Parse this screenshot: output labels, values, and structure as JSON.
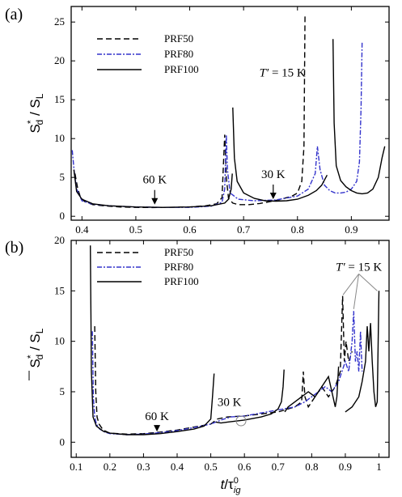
{
  "chart_data": [
    {
      "panel": "(a)",
      "type": "line",
      "xlim": [
        0.38,
        0.97
      ],
      "ylim": [
        -0.5,
        27
      ],
      "xticks": [
        0.4,
        0.5,
        0.6,
        0.7,
        0.8,
        0.9
      ],
      "yticks": [
        0,
        5,
        10,
        15,
        20,
        25
      ],
      "ylabel_main": "S",
      "ylabel_sup": "*",
      "ylabel_sub": "d",
      "ylabel_tail": " / S",
      "ylabel_sub2": "L",
      "legend": [
        {
          "name": "PRF50",
          "color": "#000000",
          "dash": "7,4"
        },
        {
          "name": "PRF80",
          "color": "#3333cc",
          "dash": "6,2,2,2"
        },
        {
          "name": "PRF100",
          "color": "#000000",
          "dash": ""
        }
      ],
      "annotations": [
        {
          "text": "60 K",
          "x": 0.535,
          "y": 1.3
        },
        {
          "text": "30 K",
          "x": 0.755,
          "y": 2.0
        },
        {
          "text": "T′ = 15 K",
          "x": 0.815,
          "y": 18
        }
      ],
      "series": [
        {
          "name": "PRF50",
          "color": "#000000",
          "dash": "7,4",
          "x": [
            0.387,
            0.392,
            0.397,
            0.405,
            0.42,
            0.44,
            0.47,
            0.5,
            0.53,
            0.56,
            0.6,
            0.63,
            0.65,
            0.66,
            0.665,
            0.668,
            0.672,
            0.68,
            0.69,
            0.71,
            0.73,
            0.75,
            0.77,
            0.79,
            0.8,
            0.808,
            0.812,
            0.814
          ],
          "y": [
            5.5,
            3.6,
            2.5,
            1.9,
            1.5,
            1.35,
            1.2,
            1.15,
            1.12,
            1.15,
            1.2,
            1.35,
            1.6,
            2.4,
            10.5,
            5.0,
            2.3,
            1.7,
            1.5,
            1.5,
            1.65,
            1.9,
            2.2,
            2.6,
            3.0,
            4.5,
            9.0,
            26
          ]
        },
        {
          "name": "PRF80",
          "color": "#3333cc",
          "dash": "6,2,2,2",
          "x": [
            0.382,
            0.386,
            0.39,
            0.4,
            0.42,
            0.45,
            0.5,
            0.55,
            0.6,
            0.64,
            0.66,
            0.665,
            0.668,
            0.67,
            0.675,
            0.69,
            0.72,
            0.76,
            0.8,
            0.82,
            0.833,
            0.837,
            0.842,
            0.85,
            0.86,
            0.87,
            0.88,
            0.89,
            0.9,
            0.91,
            0.915,
            0.918,
            0.92
          ],
          "y": [
            8.5,
            5.5,
            3.5,
            2.0,
            1.55,
            1.35,
            1.2,
            1.15,
            1.15,
            1.3,
            1.8,
            3.5,
            10.5,
            6.0,
            3.0,
            2.2,
            2.0,
            2.1,
            2.6,
            3.5,
            5.5,
            9.0,
            6.0,
            4.0,
            3.3,
            3.0,
            3.0,
            3.1,
            3.5,
            4.5,
            7.0,
            14,
            22.5
          ]
        },
        {
          "name": "PRF100",
          "color": "#000000",
          "dash": "",
          "x": [
            0.385,
            0.39,
            0.4,
            0.42,
            0.45,
            0.5,
            0.55,
            0.6,
            0.64,
            0.665,
            0.672,
            0.677,
            0.679
          ],
          "y": [
            6.0,
            3.2,
            2.2,
            1.6,
            1.35,
            1.2,
            1.15,
            1.2,
            1.35,
            1.7,
            2.2,
            3.5,
            5.5
          ]
        },
        {
          "name": "PRF100",
          "color": "#000000",
          "dash": "",
          "x": [
            0.68,
            0.683,
            0.688,
            0.7,
            0.72,
            0.74,
            0.76,
            0.78,
            0.8,
            0.82,
            0.835,
            0.845,
            0.855
          ],
          "y": [
            14,
            7.5,
            4.5,
            3.0,
            2.3,
            2.0,
            1.95,
            2.0,
            2.2,
            2.7,
            3.3,
            4.0,
            5.3
          ]
        },
        {
          "name": "PRF100",
          "color": "#000000",
          "dash": "",
          "x": [
            0.866,
            0.868,
            0.872,
            0.88,
            0.89,
            0.9,
            0.91,
            0.92,
            0.93,
            0.94,
            0.95,
            0.957,
            0.962
          ],
          "y": [
            22.8,
            12,
            6.5,
            4.6,
            3.8,
            3.3,
            3.0,
            2.9,
            3.0,
            3.5,
            5.0,
            7.5,
            9.0
          ]
        }
      ]
    },
    {
      "panel": "(b)",
      "type": "line",
      "xlim": [
        0.085,
        1.03
      ],
      "ylim": [
        -1.5,
        20
      ],
      "xticks": [
        0.1,
        0.2,
        0.3,
        0.4,
        0.5,
        0.6,
        0.7,
        0.8,
        0.9,
        1.0
      ],
      "xtick_labels": [
        "0.1",
        "0.2",
        "0.3",
        "0.4",
        "0.5",
        "0.6",
        "0.7",
        "0.8",
        "0.9",
        "1"
      ],
      "yticks": [
        0,
        5,
        10,
        15,
        20
      ],
      "xlabel_main": "t",
      "xlabel_slash": "/τ",
      "xlabel_sup": "0",
      "xlabel_sub": "ig",
      "ylabel_main": "S",
      "ylabel_sup": "*",
      "ylabel_sub": "d",
      "ylabel_tail": " / S",
      "ylabel_sub2": "L",
      "legend": [
        {
          "name": "PRF50",
          "color": "#000000",
          "dash": "7,4"
        },
        {
          "name": "PRF80",
          "color": "#3333cc",
          "dash": "6,2,2,2"
        },
        {
          "name": "PRF100",
          "color": "#000000",
          "dash": ""
        }
      ],
      "annotations": [
        {
          "text": "60 K",
          "x": 0.34,
          "y": 0.9
        },
        {
          "text": "30 K",
          "x": 0.52,
          "y": 2.0
        },
        {
          "text": "T′ = 15 K",
          "x": 0.94,
          "y": 17
        }
      ],
      "series": [
        {
          "name": "PRF50",
          "color": "#000000",
          "dash": "7,4",
          "x": [
            0.155,
            0.158,
            0.162,
            0.168,
            0.18,
            0.2,
            0.25,
            0.3,
            0.35,
            0.4,
            0.45,
            0.5,
            0.52,
            0.55,
            0.6,
            0.65,
            0.7,
            0.73,
            0.75,
            0.77,
            0.775,
            0.78,
            0.79,
            0.81,
            0.83,
            0.85,
            0.87,
            0.885,
            0.892,
            0.897,
            0.902,
            0.91,
            0.92
          ],
          "y": [
            11.5,
            5.0,
            2.5,
            1.8,
            1.2,
            0.9,
            0.8,
            0.85,
            1.0,
            1.2,
            1.5,
            1.8,
            2.3,
            2.5,
            2.6,
            2.8,
            3.0,
            3.3,
            3.5,
            4.0,
            7.0,
            4.5,
            3.5,
            4.5,
            5.5,
            4.5,
            5.5,
            7.0,
            14.5,
            8.0,
            10.0,
            8.0,
            9.0
          ]
        },
        {
          "name": "PRF80",
          "color": "#3333cc",
          "dash": "6,2,2,2",
          "x": [
            0.148,
            0.151,
            0.155,
            0.16,
            0.17,
            0.185,
            0.2,
            0.25,
            0.3,
            0.35,
            0.4,
            0.45,
            0.5,
            0.53,
            0.56,
            0.6,
            0.65,
            0.7,
            0.75,
            0.78,
            0.8,
            0.82,
            0.84,
            0.86,
            0.88,
            0.9,
            0.91,
            0.92,
            0.925,
            0.93,
            0.935,
            0.94,
            0.945,
            0.95
          ],
          "y": [
            11,
            4.5,
            2.5,
            1.8,
            1.3,
            1.0,
            0.85,
            0.75,
            0.8,
            0.95,
            1.15,
            1.45,
            1.8,
            2.2,
            2.5,
            2.6,
            2.9,
            3.2,
            3.5,
            4.0,
            4.5,
            5.0,
            5.5,
            5.0,
            6.0,
            8.0,
            7.0,
            10.0,
            13.0,
            8.0,
            9.0,
            7.0,
            11.0,
            7.0
          ]
        },
        {
          "name": "PRF100",
          "color": "#000000",
          "dash": "",
          "x": [
            0.142,
            0.145,
            0.15,
            0.16,
            0.18,
            0.2,
            0.25,
            0.3,
            0.35,
            0.4,
            0.45,
            0.48,
            0.5,
            0.505,
            0.51
          ],
          "y": [
            19.5,
            7.0,
            2.5,
            1.6,
            1.1,
            0.9,
            0.75,
            0.75,
            0.85,
            1.05,
            1.3,
            1.6,
            2.3,
            4.5,
            6.8
          ]
        },
        {
          "name": "PRF100",
          "color": "#000000",
          "dash": "",
          "x": [
            0.515,
            0.53,
            0.55,
            0.6,
            0.65,
            0.68,
            0.7,
            0.71,
            0.715,
            0.718
          ],
          "y": [
            2.0,
            1.9,
            2.0,
            2.2,
            2.5,
            2.8,
            3.3,
            4.0,
            5.5,
            7.2
          ]
        },
        {
          "name": "PRF100",
          "color": "#000000",
          "dash": "",
          "x": [
            0.72,
            0.73,
            0.75,
            0.77,
            0.79,
            0.81,
            0.83,
            0.85,
            0.86,
            0.87,
            0.875,
            0.88
          ],
          "y": [
            3.0,
            3.5,
            4.0,
            4.5,
            5.0,
            4.5,
            5.5,
            6.5,
            5.0,
            3.5,
            4.5,
            7.5
          ]
        },
        {
          "name": "PRF100",
          "color": "#000000",
          "dash": "",
          "x": [
            0.9,
            0.92,
            0.94,
            0.95,
            0.96,
            0.965,
            0.97,
            0.975,
            0.98,
            0.985,
            0.99,
            0.995,
            1.0
          ],
          "y": [
            3.0,
            3.5,
            4.5,
            6.0,
            8.0,
            11.5,
            9.0,
            11.8,
            8.0,
            5.0,
            3.5,
            4.0,
            15.0
          ]
        }
      ]
    }
  ]
}
